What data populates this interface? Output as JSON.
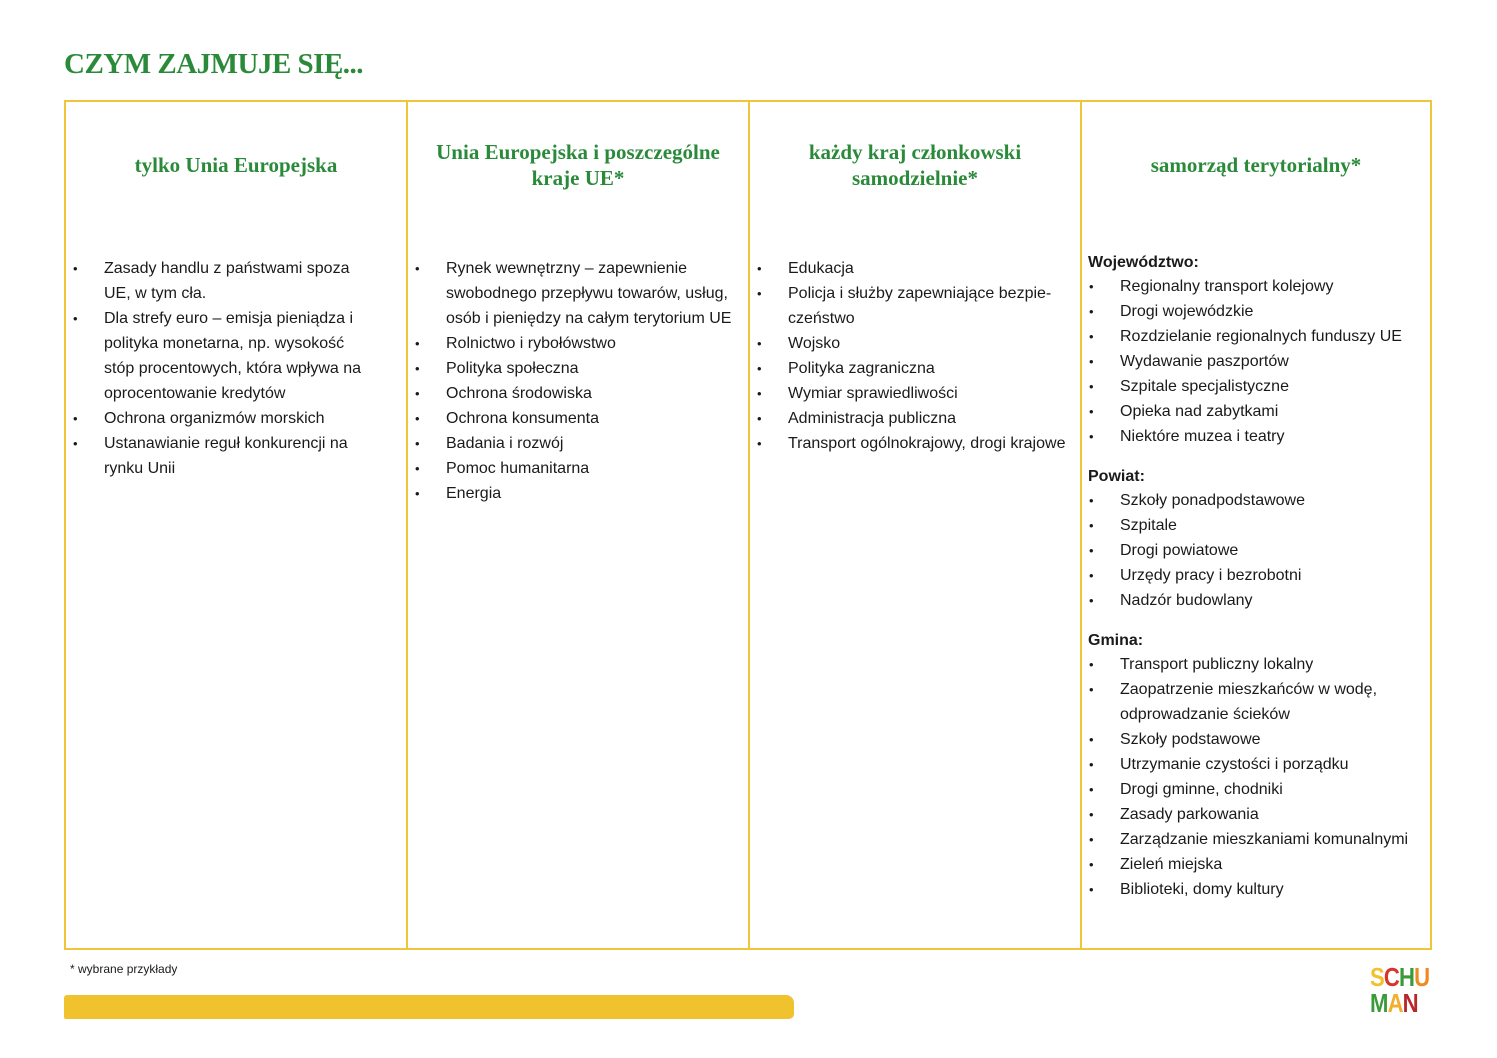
{
  "title": "CZYM ZAJMUJE SIĘ...",
  "columns": [
    {
      "header": "tylko Unia Europejska",
      "items": [
        "Zasady handlu z państwami spoza UE, w tym cła.",
        "Dla strefy euro – emisja pieniądza i polityka monetarna, np. wysokość stóp procentowych, która wpływa na oprocentowanie kredytów",
        "Ochrona organizmów morskich",
        "Ustanawianie reguł konkurencji na rynku Unii"
      ]
    },
    {
      "header": "Unia Europejska i poszczególne kraje UE*",
      "items": [
        "Rynek wewnętrzny – zapewnienie swobodnego przepływu towarów, usług, osób i pieniędzy na całym terytorium UE",
        "Rolnictwo i rybołówstwo",
        "Polityka społeczna",
        "Ochrona środowiska",
        "Ochrona konsumenta",
        "Badania i rozwój",
        "Pomoc humanitarna",
        "Energia"
      ]
    },
    {
      "header": "każdy kraj członkowski samodzielnie*",
      "items": [
        "Edukacja",
        "Policja i służby zapewniające bezpie-czeństwo",
        "Wojsko",
        "Polityka zagraniczna",
        "Wymiar sprawiedliwości",
        "Administracja publiczna",
        "Transport ogólnokrajowy, drogi krajowe"
      ]
    },
    {
      "header": "samorząd terytorialny*",
      "sections": [
        {
          "heading": "Województwo:",
          "items": [
            "Regionalny transport kolejowy",
            "Drogi wojewódzkie",
            "Rozdzielanie regionalnych funduszy UE",
            "Wydawanie paszportów",
            "Szpitale specjalistyczne",
            "Opieka nad zabytkami",
            "Niektóre muzea i teatry"
          ]
        },
        {
          "heading": "Powiat:",
          "items": [
            "Szkoły ponadpodstawowe",
            "Szpitale",
            "Drogi powiatowe",
            "Urzędy pracy i bezrobotni",
            "Nadzór budowlany"
          ]
        },
        {
          "heading": "Gmina:",
          "items": [
            "Transport publiczny lokalny",
            "Zaopatrzenie mieszkańców w wodę, odprowadzanie ścieków",
            "Szkoły podstawowe",
            "Utrzymanie czystości i porządku",
            "Drogi gminne, chodniki",
            "Zasady parkowania",
            "Zarządzanie mieszkaniami komunalnymi",
            "Zieleń miejska",
            "Biblioteki, domy kultury"
          ]
        }
      ]
    }
  ],
  "footnote": "* wybrane przykłady",
  "logo": {
    "text": "SCHUMAN",
    "colors": [
      "#f0c22e",
      "#d9332b",
      "#3a9a3a",
      "#ee8a22",
      "#3a9a3a",
      "#f0b02e",
      "#b8282a"
    ]
  },
  "colors": {
    "accent": "#2a8a3a",
    "border": "#f0c53a"
  }
}
